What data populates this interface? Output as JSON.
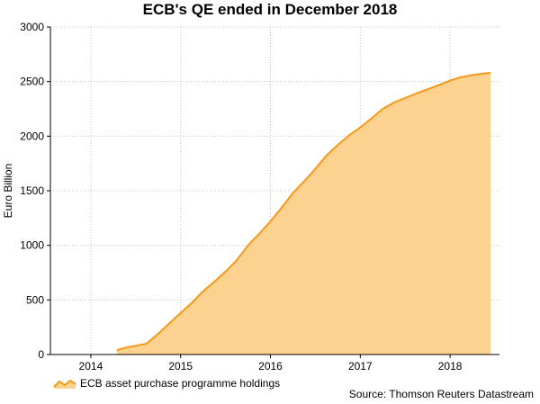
{
  "chart_data": {
    "type": "area",
    "title": "ECB's QE ended in December 2018",
    "ylabel": "Euro Billion",
    "xlabel": "",
    "ylim": [
      0,
      3000
    ],
    "xlim": [
      2013.55,
      2018.55
    ],
    "yticks": [
      0,
      500,
      1000,
      1500,
      2000,
      2500,
      3000
    ],
    "xticks": [
      {
        "label": "2014",
        "value": 2014.0
      },
      {
        "label": "2015",
        "value": 2015.0
      },
      {
        "label": "2016",
        "value": 2016.0
      },
      {
        "label": "2017",
        "value": 2017.0
      },
      {
        "label": "2018",
        "value": 2018.0
      }
    ],
    "grid": true,
    "legend_position": "bottom-left",
    "fill_color": "#fdd18e",
    "line_color": "#f39a1b",
    "series": [
      {
        "name": "ECB asset purchase programme holdings",
        "x": [
          2014.29,
          2014.4,
          2014.5,
          2014.62,
          2014.75,
          2014.88,
          2015.0,
          2015.12,
          2015.25,
          2015.38,
          2015.5,
          2015.62,
          2015.75,
          2015.88,
          2016.0,
          2016.12,
          2016.25,
          2016.38,
          2016.5,
          2016.62,
          2016.75,
          2016.88,
          2017.0,
          2017.12,
          2017.25,
          2017.38,
          2017.5,
          2017.62,
          2017.75,
          2017.88,
          2018.0,
          2018.12,
          2018.25,
          2018.38,
          2018.45
        ],
        "values": [
          40,
          65,
          80,
          100,
          190,
          290,
          380,
          470,
          580,
          670,
          760,
          860,
          1000,
          1110,
          1220,
          1340,
          1480,
          1590,
          1700,
          1820,
          1920,
          2010,
          2080,
          2160,
          2250,
          2310,
          2350,
          2390,
          2430,
          2470,
          2510,
          2540,
          2560,
          2575,
          2580
        ]
      }
    ],
    "source": "Source: Thomson Reuters Datastream"
  }
}
